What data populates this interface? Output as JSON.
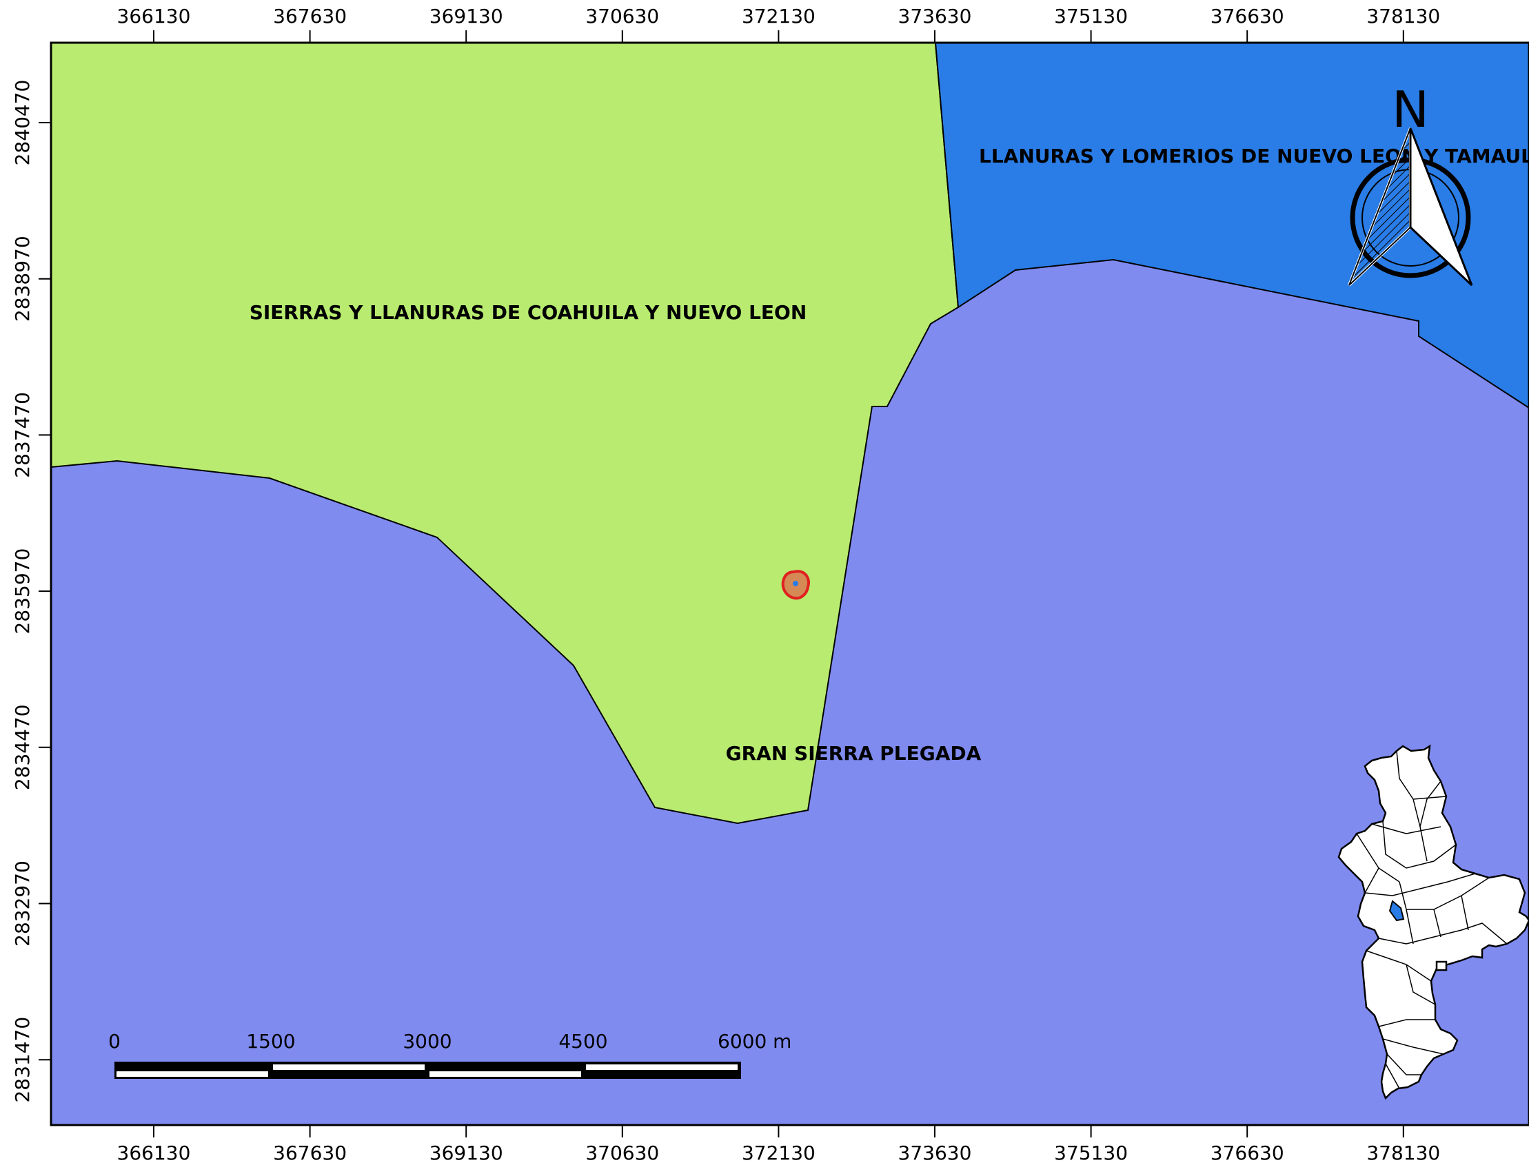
{
  "map": {
    "x_ticks": [
      "366130",
      "367630",
      "369130",
      "370630",
      "372130",
      "373630",
      "375130",
      "376630",
      "378130"
    ],
    "y_ticks": [
      "2840470",
      "2838970",
      "2837470",
      "2835970",
      "2834470",
      "2832970",
      "2831470"
    ],
    "regions": [
      {
        "name": "SIERRAS Y LLANURAS DE COAHUILA Y NUEVO LEON",
        "color": "#b8eb6f"
      },
      {
        "name": "LLANURAS Y LOMERIOS DE NUEVO LEON Y TAMAULIPAS",
        "color": "#2a7de6"
      },
      {
        "name": "GRAN SIERRA PLEGADA",
        "color": "#7f8bef"
      }
    ],
    "region_label_1": "SIERRAS Y LLANURAS DE COAHUILA Y NUEVO LEON",
    "region_label_2": "LLANURAS Y LOMERIOS DE NUEVO LEON Y TAMAULIPAS",
    "region_label_3": "GRAN SIERRA PLEGADA",
    "study_site_color": "#d58a55",
    "study_site_outline": "#e02020",
    "north_arrow_label": "N",
    "scale_bar": {
      "labels": [
        "0",
        "1500",
        "3000",
        "4500",
        "6000 m"
      ]
    },
    "inset_highlight_color": "#2a7de6"
  }
}
